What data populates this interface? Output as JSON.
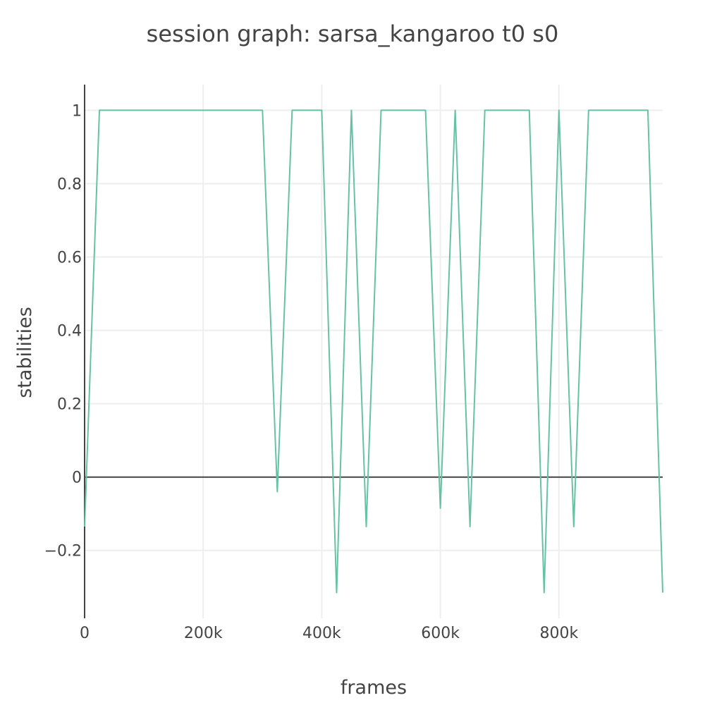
{
  "chart_data": {
    "type": "line",
    "title": "session graph: sarsa_kangaroo t0 s0",
    "xlabel": "frames",
    "ylabel": "stabilities",
    "xlim": [
      0,
      975000
    ],
    "ylim": [
      -0.385,
      1.07
    ],
    "x_ticks": [
      0,
      200000,
      400000,
      600000,
      800000
    ],
    "x_tick_labels": [
      "0",
      "200k",
      "400k",
      "600k",
      "800k"
    ],
    "y_ticks": [
      -0.2,
      0,
      0.2,
      0.4,
      0.6,
      0.8,
      1
    ],
    "y_tick_labels": [
      "−0.2",
      "0",
      "0.2",
      "0.4",
      "0.6",
      "0.8",
      "1"
    ],
    "grid": true,
    "legend": "none",
    "series": [
      {
        "color": "#66c2a5",
        "x": [
          0,
          25000,
          50000,
          75000,
          100000,
          125000,
          150000,
          175000,
          200000,
          225000,
          250000,
          275000,
          300000,
          325000,
          350000,
          375000,
          400000,
          425000,
          450000,
          475000,
          500000,
          525000,
          550000,
          575000,
          600000,
          625000,
          650000,
          675000,
          700000,
          725000,
          750000,
          775000,
          800000,
          825000,
          850000,
          875000,
          900000,
          925000,
          950000,
          975000
        ],
        "y": [
          -0.135,
          1,
          1,
          1,
          1,
          1,
          1,
          1,
          1,
          1,
          1,
          1,
          1,
          -0.04,
          1,
          1,
          1,
          -0.315,
          1,
          -0.135,
          1,
          1,
          1,
          1,
          -0.085,
          1,
          -0.135,
          1,
          1,
          1,
          1,
          -0.315,
          1,
          -0.135,
          1,
          1,
          1,
          1,
          1,
          -0.315
        ]
      }
    ]
  }
}
